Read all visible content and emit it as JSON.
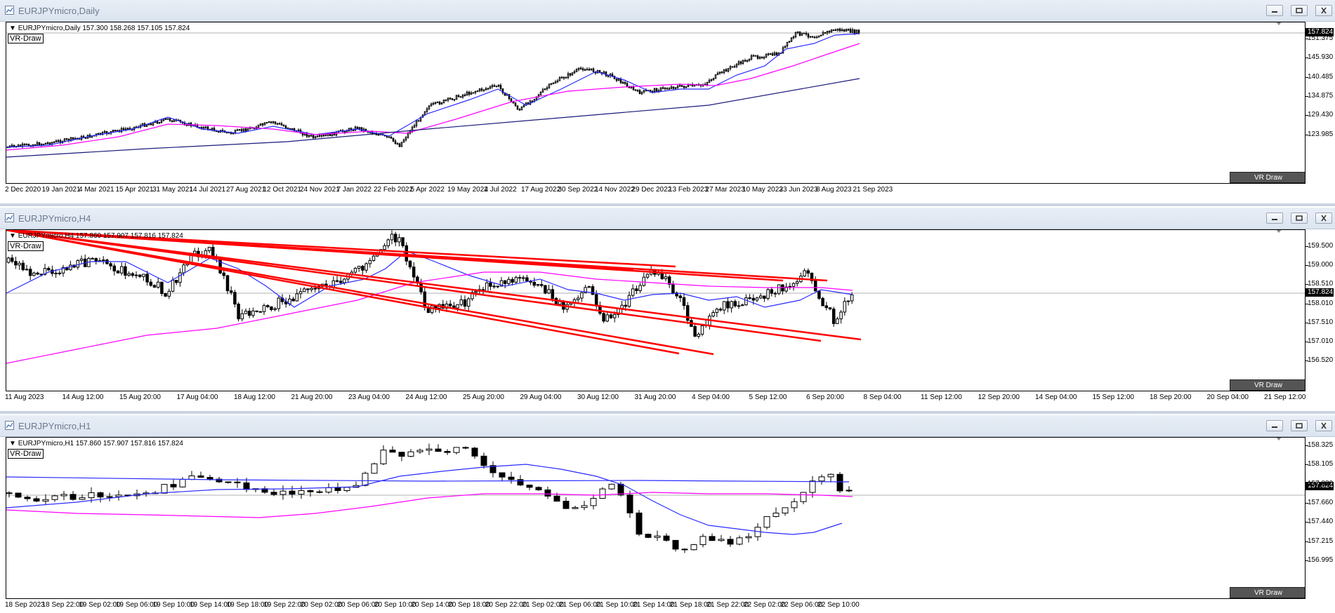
{
  "windows": [
    {
      "title": "EURJPYmicro,Daily",
      "header": "EURJPYmicro,Daily  157.300 158.268 157.105 157.824",
      "vr_label": "VR-Draw",
      "vr_button": "VR Draw",
      "current_price": "157.824",
      "price_labels": [
        "151.375",
        "145.930",
        "140.485",
        "134.875",
        "129.430",
        "123.985"
      ],
      "time_labels": [
        "2 Dec 2020",
        "19 Jan 2021",
        "4 Mar 2021",
        "15 Apr 2021",
        "31 May 2021",
        "14 Jul 2021",
        "27 Aug 2021",
        "12 Oct 2021",
        "24 Nov 2021",
        "7 Jan 2022",
        "22 Feb 2022",
        "5 Apr 2022",
        "19 May 2022",
        "4 Jul 2022",
        "17 Aug 2022",
        "30 Sep 2022",
        "14 Nov 2022",
        "29 Dec 2022",
        "13 Feb 2023",
        "27 Mar 2023",
        "10 May 2023",
        "23 Jun 2023",
        "8 Aug 2023",
        "21 Sep 2023"
      ]
    },
    {
      "title": "EURJPYmicro,H4",
      "header": "EURJPYmicro,H4  157.860 157.907 157.816 157.824",
      "vr_label": "VR-Draw",
      "vr_button": "VR Draw",
      "current_price": "157.824",
      "price_labels": [
        "159.500",
        "159.000",
        "158.510",
        "158.010",
        "157.510",
        "157.010",
        "156.520"
      ],
      "time_labels": [
        "11 Aug 2023",
        "14 Aug 12:00",
        "15 Aug 20:00",
        "17 Aug 04:00",
        "18 Aug 12:00",
        "21 Aug 20:00",
        "23 Aug 04:00",
        "24 Aug 12:00",
        "25 Aug 20:00",
        "29 Aug 04:00",
        "30 Aug 12:00",
        "31 Aug 20:00",
        "4 Sep 04:00",
        "5 Sep 12:00",
        "6 Sep 20:00",
        "8 Sep 04:00",
        "11 Sep 12:00",
        "12 Sep 20:00",
        "14 Sep 04:00",
        "15 Sep 12:00",
        "18 Sep 20:00",
        "20 Sep 04:00",
        "21 Sep 12:00"
      ]
    },
    {
      "title": "EURJPYmicro,H1",
      "header": "EURJPYmicro,H1  157.860 157.907 157.816 157.824",
      "vr_label": "VR-Draw",
      "vr_button": "VR Draw",
      "current_price": "157.824",
      "price_labels": [
        "158.325",
        "158.105",
        "157.880",
        "157.660",
        "157.440",
        "157.215",
        "156.995"
      ],
      "time_labels": [
        "18 Sep 2023",
        "18 Sep 22:00",
        "19 Sep 02:00",
        "19 Sep 06:00",
        "19 Sep 10:00",
        "19 Sep 14:00",
        "19 Sep 18:00",
        "19 Sep 22:00",
        "20 Sep 02:00",
        "20 Sep 06:00",
        "20 Sep 10:00",
        "20 Sep 14:00",
        "20 Sep 18:00",
        "20 Sep 22:00",
        "21 Sep 02:00",
        "21 Sep 06:00",
        "21 Sep 10:00",
        "21 Sep 14:00",
        "21 Sep 18:00",
        "21 Sep 22:00",
        "22 Sep 02:00",
        "22 Sep 06:00",
        "22 Sep 10:00"
      ]
    }
  ],
  "colors": {
    "fast_ma": "#2b2bff",
    "slow_ma": "#ff00ff",
    "long_ma": "#1a1a7a",
    "drawn_lines": "#ff0000",
    "candle_up": "#ffffff",
    "candle_down": "#000000"
  },
  "icons": [
    "chart-window-icon",
    "minimize-icon",
    "restore-icon",
    "close-icon",
    "dropdown-triangle-icon"
  ]
}
